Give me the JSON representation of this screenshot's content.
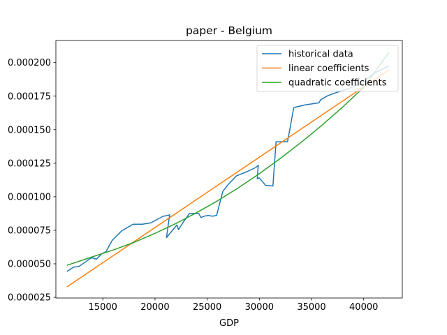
{
  "chart_data": {
    "type": "line",
    "title": "paper - Belgium",
    "xlabel": "GDP",
    "ylabel": "",
    "xlim": [
      10500,
      43700
    ],
    "ylim": [
      2.45e-05,
      0.0002165
    ],
    "xticks": [
      15000,
      20000,
      25000,
      30000,
      35000,
      40000
    ],
    "xtick_labels": [
      "15000",
      "20000",
      "25000",
      "30000",
      "35000",
      "40000"
    ],
    "yticks": [
      2.5e-05,
      5e-05,
      7.5e-05,
      0.0001,
      0.000125,
      0.00015,
      0.000175,
      0.0002
    ],
    "ytick_labels": [
      "0.000025",
      "0.000050",
      "0.000075",
      "0.000100",
      "0.000125",
      "0.000150",
      "0.000175",
      "0.000200"
    ],
    "grid": false,
    "legend_position": "top-right",
    "series": [
      {
        "name": "historical data",
        "color": "#1f77b4",
        "x": [
          11600,
          12200,
          12700,
          13300,
          13900,
          14400,
          14900,
          15300,
          15900,
          16800,
          17900,
          18800,
          19600,
          20300,
          20800,
          21200,
          21400,
          21100,
          22100,
          22250,
          22700,
          23300,
          24200,
          24400,
          24700,
          25100,
          25500,
          25900,
          26500,
          27000,
          27800,
          28900,
          29700,
          29900,
          29800,
          30000,
          30600,
          31300,
          31600,
          32200,
          32700,
          33300,
          34400,
          35700,
          35900,
          36600,
          37500,
          38500,
          39600,
          41000,
          42400
        ],
        "y": [
          4.45e-05,
          4.75e-05,
          4.8e-05,
          5.12e-05,
          5.45e-05,
          5.35e-05,
          5.75e-05,
          5.9e-05,
          6.75e-05,
          7.45e-05,
          7.95e-05,
          7.95e-05,
          8.05e-05,
          8.35e-05,
          8.55e-05,
          8.6e-05,
          8.65e-05,
          6.95e-05,
          7.9e-05,
          7.55e-05,
          8.1e-05,
          8.75e-05,
          8.75e-05,
          8.45e-05,
          8.55e-05,
          8.6e-05,
          8.55e-05,
          8.6e-05,
          0.000104,
          0.000109,
          0.0001155,
          0.000119,
          0.000122,
          0.0001235,
          0.0001135,
          0.000114,
          0.0001085,
          0.000108,
          0.000141,
          0.000141,
          0.000141,
          0.0001665,
          0.0001685,
          0.00017,
          0.0001725,
          0.0001755,
          0.000178,
          0.0001805,
          0.000184,
          0.000192,
          0.0001975
        ]
      },
      {
        "name": "linear coefficients",
        "color": "#ff7f0e",
        "x": [
          11600,
          42400
        ],
        "y": [
          3.3e-05,
          0.0001945
        ]
      },
      {
        "name": "quadratic coefficients",
        "color": "#2ca02c",
        "x": [
          11600,
          14000,
          16000,
          18000,
          20000,
          22000,
          24000,
          26000,
          28000,
          30000,
          32000,
          34000,
          36000,
          38000,
          40000,
          42400
        ],
        "y": [
          4.9e-05,
          5.52e-05,
          6.03e-05,
          6.6e-05,
          7.27e-05,
          8e-05,
          8.82e-05,
          9.7e-05,
          0.0001067,
          0.0001172,
          0.0001285,
          0.0001405,
          0.0001533,
          0.000167,
          0.0001815,
          0.0002075
        ]
      }
    ]
  }
}
